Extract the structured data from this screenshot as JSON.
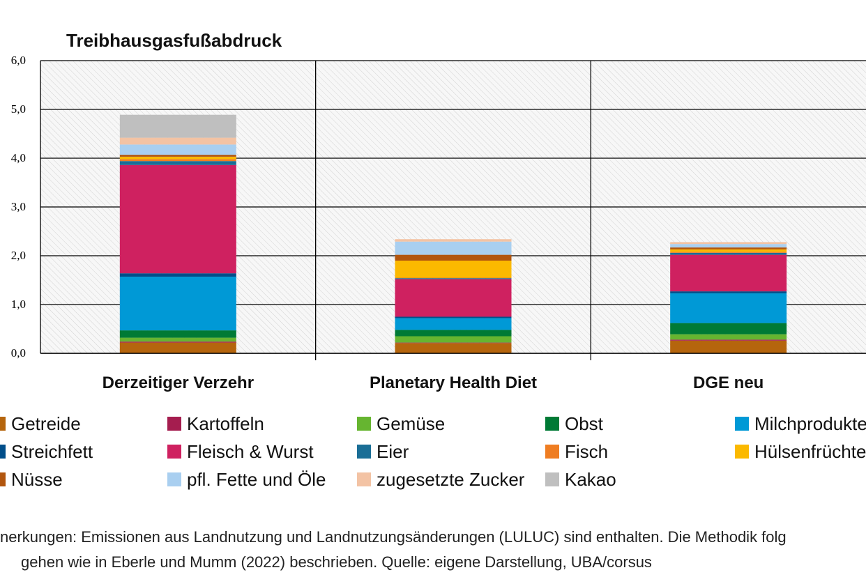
{
  "chart_data": {
    "type": "bar",
    "stacked": true,
    "title": "Treibhausgasfußabdruck",
    "ylim": [
      0,
      6
    ],
    "yticks": [
      "0,0",
      "1,0",
      "2,0",
      "3,0",
      "4,0",
      "5,0",
      "6,0"
    ],
    "grid": true,
    "legend_position": "bottom",
    "categories": [
      "Derzeitiger Verzehr",
      "Planetary Health Diet",
      "DGE neu"
    ],
    "series": [
      {
        "name": "Getreide",
        "color": "#b5650d",
        "values": [
          0.22,
          0.21,
          0.26
        ]
      },
      {
        "name": "Kartoffeln",
        "color": "#a51d4f",
        "values": [
          0.02,
          0.01,
          0.02
        ]
      },
      {
        "name": "Gemüse",
        "color": "#66b530",
        "values": [
          0.08,
          0.13,
          0.11
        ]
      },
      {
        "name": "Obst",
        "color": "#007a35",
        "values": [
          0.15,
          0.13,
          0.23
        ]
      },
      {
        "name": "Milchprodukte",
        "color": "#0099d6",
        "values": [
          1.1,
          0.24,
          0.61
        ]
      },
      {
        "name": "Streichfett",
        "color": "#004e8a",
        "values": [
          0.07,
          0.03,
          0.04
        ]
      },
      {
        "name": "Fleisch & Wurst",
        "color": "#cf2160",
        "values": [
          2.22,
          0.77,
          0.75
        ]
      },
      {
        "name": "Eier",
        "color": "#1a6e96",
        "values": [
          0.08,
          0.02,
          0.04
        ]
      },
      {
        "name": "Fisch",
        "color": "#ef7d22",
        "values": [
          0.04,
          0.01,
          0.02
        ]
      },
      {
        "name": "Hülsenfrüchte",
        "color": "#fbb900",
        "values": [
          0.05,
          0.35,
          0.05
        ]
      },
      {
        "name": "Nüsse",
        "color": "#b2560f",
        "values": [
          0.04,
          0.12,
          0.04
        ]
      },
      {
        "name": "pfl. Fette und Öle",
        "color": "#a9cff0",
        "values": [
          0.21,
          0.27,
          0.07
        ]
      },
      {
        "name": "zugesetzte Zucker",
        "color": "#f3c3a4",
        "values": [
          0.14,
          0.05,
          0.04
        ]
      },
      {
        "name": "Kakao",
        "color": "#bfbfbf",
        "values": [
          0.47,
          0.0,
          0.0
        ]
      }
    ]
  },
  "footnote": {
    "line1": "nerkungen: Emissionen aus Landnutzung und Landnutzungsänderungen (LULUC) sind enthalten. Die Methodik folg",
    "line2": "gehen wie in Eberle und Mumm (2022) beschrieben. Quelle: eigene Darstellung, UBA/corsus"
  }
}
